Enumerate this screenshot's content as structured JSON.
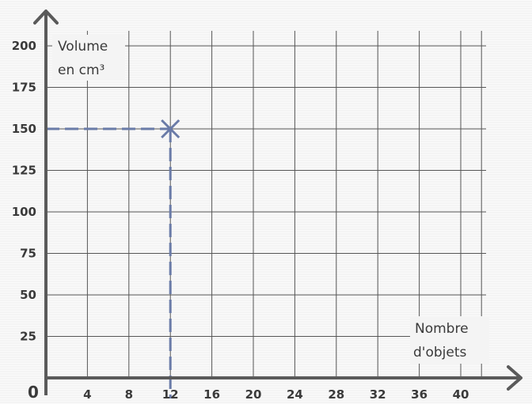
{
  "chart_data": {
    "type": "scatter",
    "title": "",
    "origin_label": "0",
    "ylabel_lines": [
      "Volume",
      "en cm³"
    ],
    "xlabel_lines": [
      "Nombre",
      "d'objets"
    ],
    "xlim": [
      0,
      42
    ],
    "ylim": [
      0,
      210
    ],
    "x_gridlines": [
      4,
      8,
      12,
      16,
      20,
      24,
      28,
      32,
      36,
      40,
      42
    ],
    "y_gridlines": [
      25,
      50,
      75,
      100,
      125,
      150,
      175,
      200
    ],
    "x_ticks": [
      {
        "value": 4,
        "label": "4"
      },
      {
        "value": 8,
        "label": "8"
      },
      {
        "value": 12,
        "label": "12"
      },
      {
        "value": 16,
        "label": "16"
      },
      {
        "value": 20,
        "label": "20"
      },
      {
        "value": 24,
        "label": "24"
      },
      {
        "value": 28,
        "label": "28"
      },
      {
        "value": 32,
        "label": "32"
      },
      {
        "value": 36,
        "label": "36"
      },
      {
        "value": 40,
        "label": "40"
      }
    ],
    "y_ticks": [
      {
        "value": 25,
        "label": "25"
      },
      {
        "value": 50,
        "label": "50"
      },
      {
        "value": 75,
        "label": "75"
      },
      {
        "value": 100,
        "label": "100"
      },
      {
        "value": 125,
        "label": "125"
      },
      {
        "value": 150,
        "label": "150"
      },
      {
        "value": 175,
        "label": "175"
      },
      {
        "value": 200,
        "label": "200"
      }
    ],
    "points": [
      {
        "x": 12,
        "y": 150,
        "marker": "cross"
      }
    ],
    "guide_lines": true,
    "grid": true,
    "colors": {
      "axis": "#5a5a5a",
      "grid": "#555555",
      "marker": "#6a7ba8",
      "text": "#3a3a3a",
      "background": "#f4f4f4"
    }
  }
}
